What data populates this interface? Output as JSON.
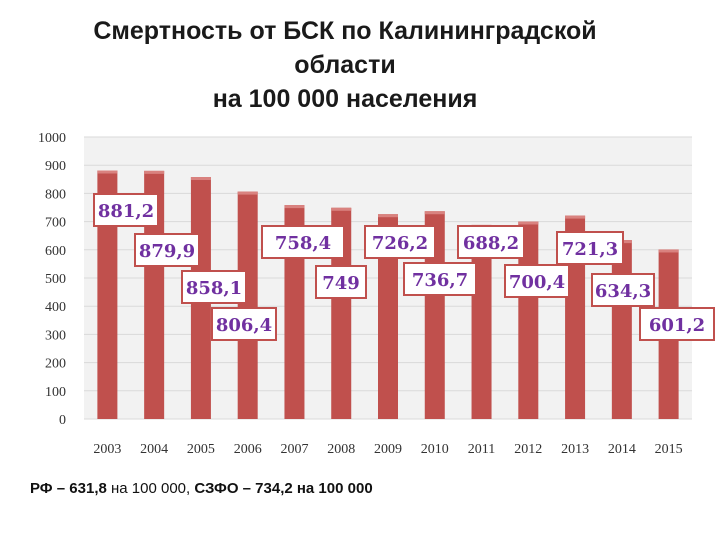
{
  "title": {
    "line1": "Смертность от БСК по Калининградской",
    "line2": "области",
    "line3": "на 100 000 населения"
  },
  "footnote": {
    "part1": "РФ – 631,8",
    "part2": " на 100 000,",
    "part3": "  СЗФО – 734,2 на 100 000"
  },
  "colors": {
    "bar": "#c0504d",
    "bar_top": "#d9827f",
    "label_text": "#7030a0",
    "label_border": "#c0504d",
    "plot_bg": "#f2f2f2",
    "gridline": "#d9d9d9"
  },
  "chart_data": {
    "type": "bar",
    "title": "Смертность от БСК по Калининградской области на 100 000 населения",
    "categories": [
      "2003",
      "2004",
      "2005",
      "2006",
      "2007",
      "2008",
      "2009",
      "2010",
      "2011",
      "2012",
      "2013",
      "2014",
      "2015"
    ],
    "values": [
      881.2,
      879.9,
      858.1,
      806.4,
      758.4,
      749,
      726.2,
      736.7,
      688.2,
      700.4,
      721.3,
      634.3,
      601.2
    ],
    "data_labels": [
      "881,2",
      "879,9",
      "858,1",
      "806,4",
      "758,4",
      "749",
      "726,2",
      "736,7",
      "688,2",
      "700,4",
      "721,3",
      "634,3",
      "601,2"
    ],
    "ylim": [
      0,
      1000
    ],
    "yticks": [
      "0",
      "100",
      "200",
      "300",
      "400",
      "500",
      "600",
      "700",
      "800",
      "900",
      "1000"
    ],
    "grid": true,
    "legend": "none"
  }
}
